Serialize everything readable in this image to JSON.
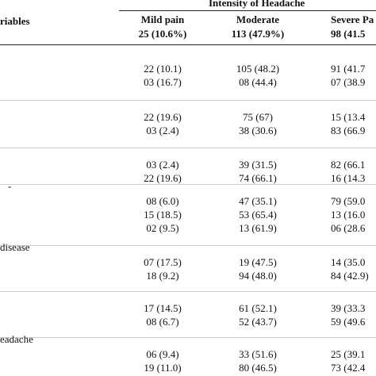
{
  "header": {
    "group_title": "Intensity of Headache",
    "variables_label": "riables",
    "columns": [
      {
        "name": "Mild pain",
        "count": "25 (10.6%)"
      },
      {
        "name": "Moderate",
        "count": "113 (47.9%)"
      },
      {
        "name": "Severe Pa",
        "count": "98 (41.5"
      }
    ]
  },
  "blocks": [
    {
      "rows": [
        [
          "22 (10.1)",
          "105 (48.2)",
          "91 (41.7"
        ],
        [
          "03 (16.7)",
          "08 (44.4)",
          "07 (38.9"
        ]
      ]
    },
    {
      "rows": [
        [
          "22 (19.6)",
          "75 (67)",
          "15 (13.4"
        ],
        [
          "03 (2.4)",
          "38 (30.6)",
          "83 (66.9"
        ]
      ]
    },
    {
      "rows": [
        [
          "03 (2.4)",
          "39 (31.5)",
          "82 (66.1"
        ],
        [
          "22 (19.6)",
          "74 (66.1)",
          "16 (14.3"
        ]
      ]
    },
    {
      "label": "-",
      "rows": [
        [
          "08 (6.0)",
          "47 (35.1)",
          "79 (59.0"
        ],
        [
          "15 (18.5)",
          "53 (65.4)",
          "13 (16.0"
        ],
        [
          "02 (9.5)",
          "13 (61.9)",
          "06 (28.6"
        ]
      ]
    },
    {
      "label": "disease",
      "rows": [
        [
          "07 (17.5)",
          "19 (47.5)",
          "14 (35.0"
        ],
        [
          "18 (9.2)",
          "94 (48.0)",
          "84 (42.9)"
        ]
      ]
    },
    {
      "rows": [
        [
          "17 (14.5)",
          "61 (52.1)",
          "39 (33.3"
        ],
        [
          "08 (6.7)",
          "52 (43.7)",
          "59 (49.6"
        ]
      ]
    },
    {
      "label": "eadache",
      "rows": [
        [
          "06 (9.4)",
          "33 (51.6)",
          "25 (39.1"
        ],
        [
          "19 (11.0)",
          "80 (46.5)",
          "73 (42.4"
        ]
      ]
    }
  ]
}
